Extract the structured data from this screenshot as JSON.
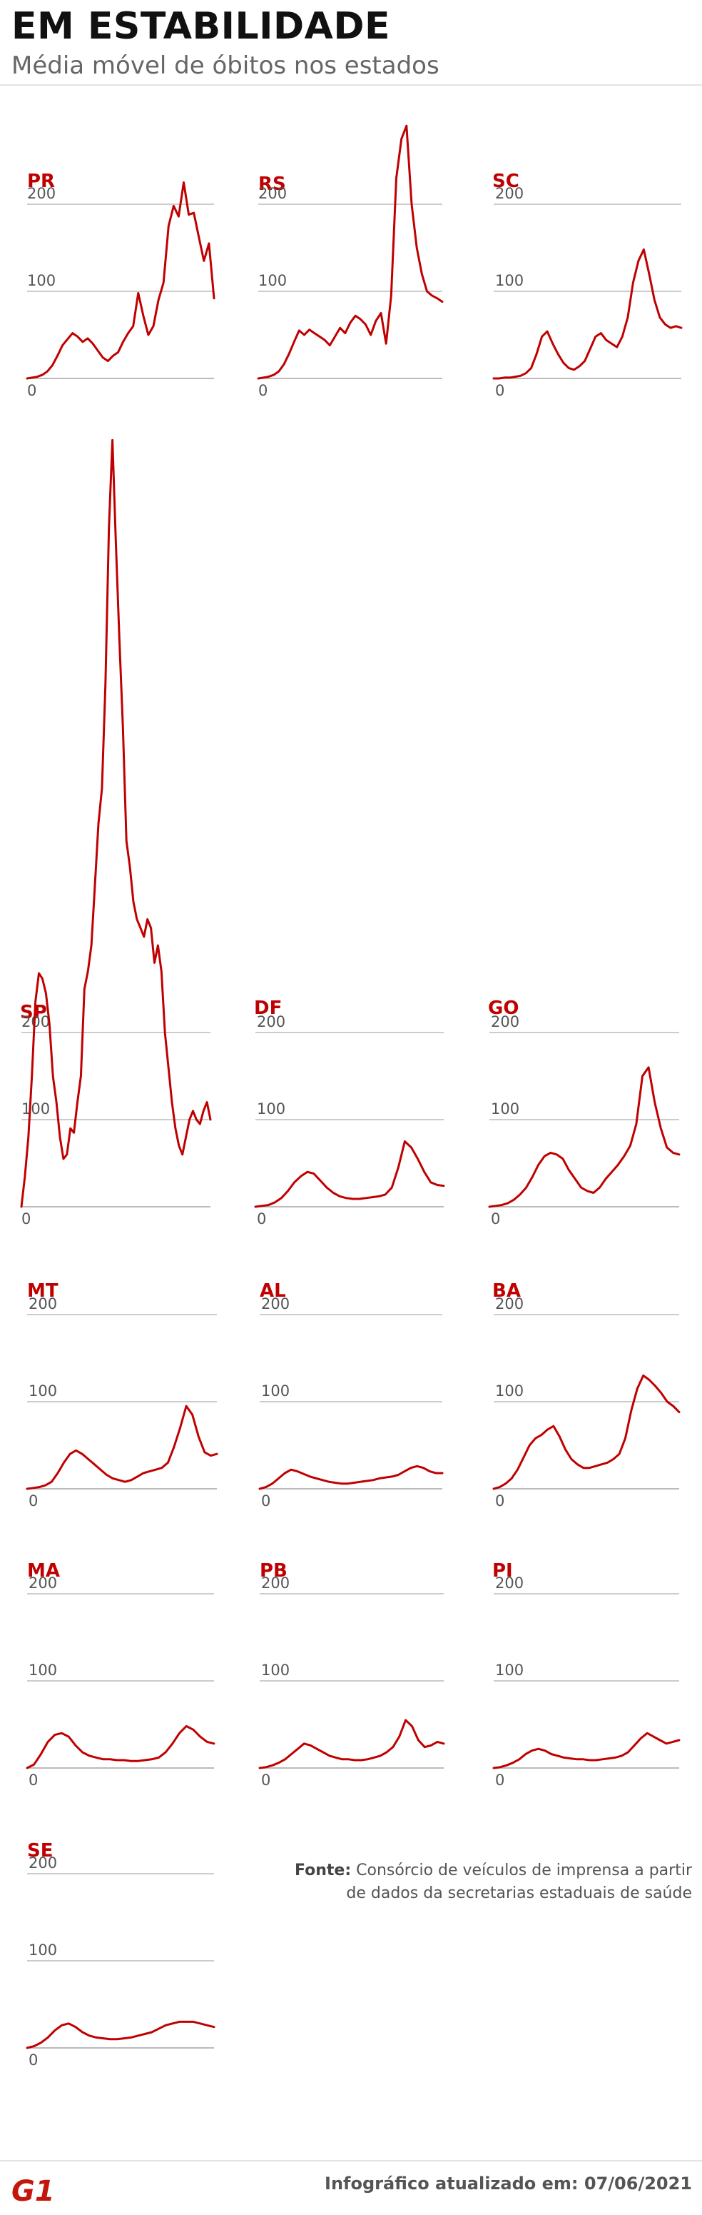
{
  "header": {
    "title": "EM ESTABILIDADE",
    "subtitle": "Média móvel de óbitos nos estados"
  },
  "colors": {
    "line": "#c00000",
    "label": "#c00000",
    "grid": "#bbbbbb",
    "tick": "#555555"
  },
  "chart_data": [
    {
      "type": "line",
      "title": "PR",
      "yticks": [
        "0",
        "100",
        "200"
      ],
      "ylim": [
        0,
        260
      ],
      "series": [
        {
          "values": [
            0,
            1,
            2,
            4,
            8,
            15,
            26,
            38,
            45,
            52,
            48,
            42,
            46,
            40,
            32,
            24,
            20,
            26,
            30,
            42,
            52,
            60,
            98,
            72,
            50,
            60,
            90,
            110,
            175,
            198,
            186,
            225,
            188,
            190,
            162,
            135,
            155,
            92
          ]
        }
      ]
    },
    {
      "type": "line",
      "title": "RS",
      "yticks": [
        "0",
        "100",
        "200"
      ],
      "ylim": [
        0,
        300
      ],
      "series": [
        {
          "values": [
            0,
            1,
            2,
            4,
            8,
            16,
            28,
            42,
            55,
            50,
            56,
            52,
            48,
            44,
            38,
            48,
            58,
            52,
            64,
            72,
            68,
            62,
            50,
            66,
            75,
            40,
            95,
            230,
            275,
            290,
            200,
            150,
            120,
            100,
            95,
            92,
            88
          ]
        }
      ]
    },
    {
      "type": "line",
      "title": "SC",
      "yticks": [
        "0",
        "100",
        "200"
      ],
      "ylim": [
        0,
        300
      ],
      "series": [
        {
          "values": [
            0,
            0,
            1,
            1,
            2,
            3,
            6,
            12,
            28,
            48,
            54,
            40,
            28,
            18,
            12,
            10,
            14,
            20,
            34,
            48,
            52,
            44,
            40,
            36,
            48,
            70,
            110,
            135,
            148,
            120,
            90,
            70,
            62,
            58,
            60,
            58
          ]
        }
      ]
    },
    {
      "type": "line",
      "title": "SP",
      "yticks": [
        "0",
        "100",
        "200"
      ],
      "ylim": [
        0,
        900
      ],
      "series": [
        {
          "values": [
            0,
            35,
            80,
            150,
            235,
            268,
            262,
            245,
            210,
            150,
            120,
            80,
            55,
            60,
            90,
            85,
            120,
            150,
            250,
            270,
            300,
            370,
            440,
            480,
            600,
            780,
            880,
            760,
            650,
            550,
            420,
            390,
            350,
            330,
            320,
            310,
            330,
            320,
            280,
            300,
            270,
            200,
            160,
            120,
            90,
            70,
            60,
            80,
            100,
            110,
            100,
            95,
            110,
            120,
            100
          ]
        }
      ]
    },
    {
      "type": "line",
      "title": "DF",
      "yticks": [
        "0",
        "100",
        "200"
      ],
      "ylim": [
        0,
        200
      ],
      "series": [
        {
          "values": [
            0,
            1,
            2,
            5,
            10,
            18,
            28,
            35,
            40,
            38,
            30,
            22,
            16,
            12,
            10,
            9,
            9,
            10,
            11,
            12,
            14,
            22,
            45,
            75,
            68,
            55,
            40,
            28,
            25,
            24
          ]
        }
      ]
    },
    {
      "type": "line",
      "title": "GO",
      "yticks": [
        "0",
        "100",
        "200"
      ],
      "ylim": [
        0,
        200
      ],
      "series": [
        {
          "values": [
            0,
            1,
            2,
            4,
            8,
            14,
            22,
            34,
            48,
            58,
            62,
            60,
            55,
            42,
            32,
            22,
            18,
            16,
            22,
            32,
            40,
            48,
            58,
            70,
            95,
            150,
            160,
            120,
            90,
            68,
            62,
            60
          ]
        }
      ]
    },
    {
      "type": "line",
      "title": "MT",
      "yticks": [
        "0",
        "100",
        "200"
      ],
      "ylim": [
        0,
        200
      ],
      "series": [
        {
          "values": [
            0,
            1,
            2,
            4,
            8,
            18,
            30,
            40,
            44,
            40,
            34,
            28,
            22,
            16,
            12,
            10,
            8,
            10,
            14,
            18,
            20,
            22,
            24,
            30,
            48,
            70,
            95,
            85,
            60,
            42,
            38,
            40
          ]
        }
      ]
    },
    {
      "type": "line",
      "title": "AL",
      "yticks": [
        "0",
        "100",
        "200"
      ],
      "ylim": [
        0,
        200
      ],
      "series": [
        {
          "values": [
            0,
            2,
            6,
            12,
            18,
            22,
            20,
            17,
            14,
            12,
            10,
            8,
            7,
            6,
            6,
            7,
            8,
            9,
            10,
            12,
            13,
            14,
            16,
            20,
            24,
            26,
            24,
            20,
            18,
            18
          ]
        }
      ]
    },
    {
      "type": "line",
      "title": "BA",
      "yticks": [
        "0",
        "100",
        "200"
      ],
      "ylim": [
        0,
        200
      ],
      "series": [
        {
          "values": [
            0,
            2,
            6,
            12,
            22,
            36,
            50,
            58,
            62,
            68,
            72,
            60,
            45,
            34,
            28,
            24,
            24,
            26,
            28,
            30,
            34,
            40,
            58,
            90,
            115,
            130,
            125,
            118,
            110,
            100,
            95,
            88
          ]
        }
      ]
    },
    {
      "type": "line",
      "title": "MA",
      "yticks": [
        "0",
        "100",
        "200"
      ],
      "ylim": [
        0,
        200
      ],
      "series": [
        {
          "values": [
            0,
            4,
            16,
            30,
            38,
            40,
            36,
            26,
            18,
            14,
            12,
            10,
            10,
            9,
            9,
            8,
            8,
            9,
            10,
            12,
            18,
            28,
            40,
            48,
            44,
            36,
            30,
            28
          ]
        }
      ]
    },
    {
      "type": "line",
      "title": "PB",
      "yticks": [
        "0",
        "100",
        "200"
      ],
      "ylim": [
        0,
        200
      ],
      "series": [
        {
          "values": [
            0,
            1,
            3,
            6,
            10,
            16,
            22,
            28,
            26,
            22,
            18,
            14,
            12,
            10,
            10,
            9,
            9,
            10,
            12,
            14,
            18,
            24,
            36,
            55,
            48,
            32,
            24,
            26,
            30,
            28
          ]
        }
      ]
    },
    {
      "type": "line",
      "title": "PI",
      "yticks": [
        "0",
        "100",
        "200"
      ],
      "ylim": [
        0,
        200
      ],
      "series": [
        {
          "values": [
            0,
            1,
            3,
            6,
            10,
            16,
            20,
            22,
            20,
            16,
            14,
            12,
            11,
            10,
            10,
            9,
            9,
            10,
            11,
            12,
            14,
            18,
            26,
            34,
            40,
            36,
            32,
            28,
            30,
            32
          ]
        }
      ]
    },
    {
      "type": "line",
      "title": "SE",
      "yticks": [
        "0",
        "100",
        "200"
      ],
      "ylim": [
        0,
        200
      ],
      "series": [
        {
          "values": [
            0,
            2,
            6,
            12,
            20,
            26,
            28,
            24,
            18,
            14,
            12,
            11,
            10,
            10,
            11,
            12,
            14,
            16,
            18,
            22,
            26,
            28,
            30,
            30,
            30,
            28,
            26,
            24
          ]
        }
      ]
    }
  ],
  "footer": {
    "source_label": "Fonte:",
    "source_line1": "Consórcio de veículos de imprensa a partir",
    "source_line2": "de dados da secretarias estaduais de saúde",
    "updated_label": "Infográfico atualizado em:",
    "updated_date": "07/06/2021",
    "logo_text": "G1"
  }
}
